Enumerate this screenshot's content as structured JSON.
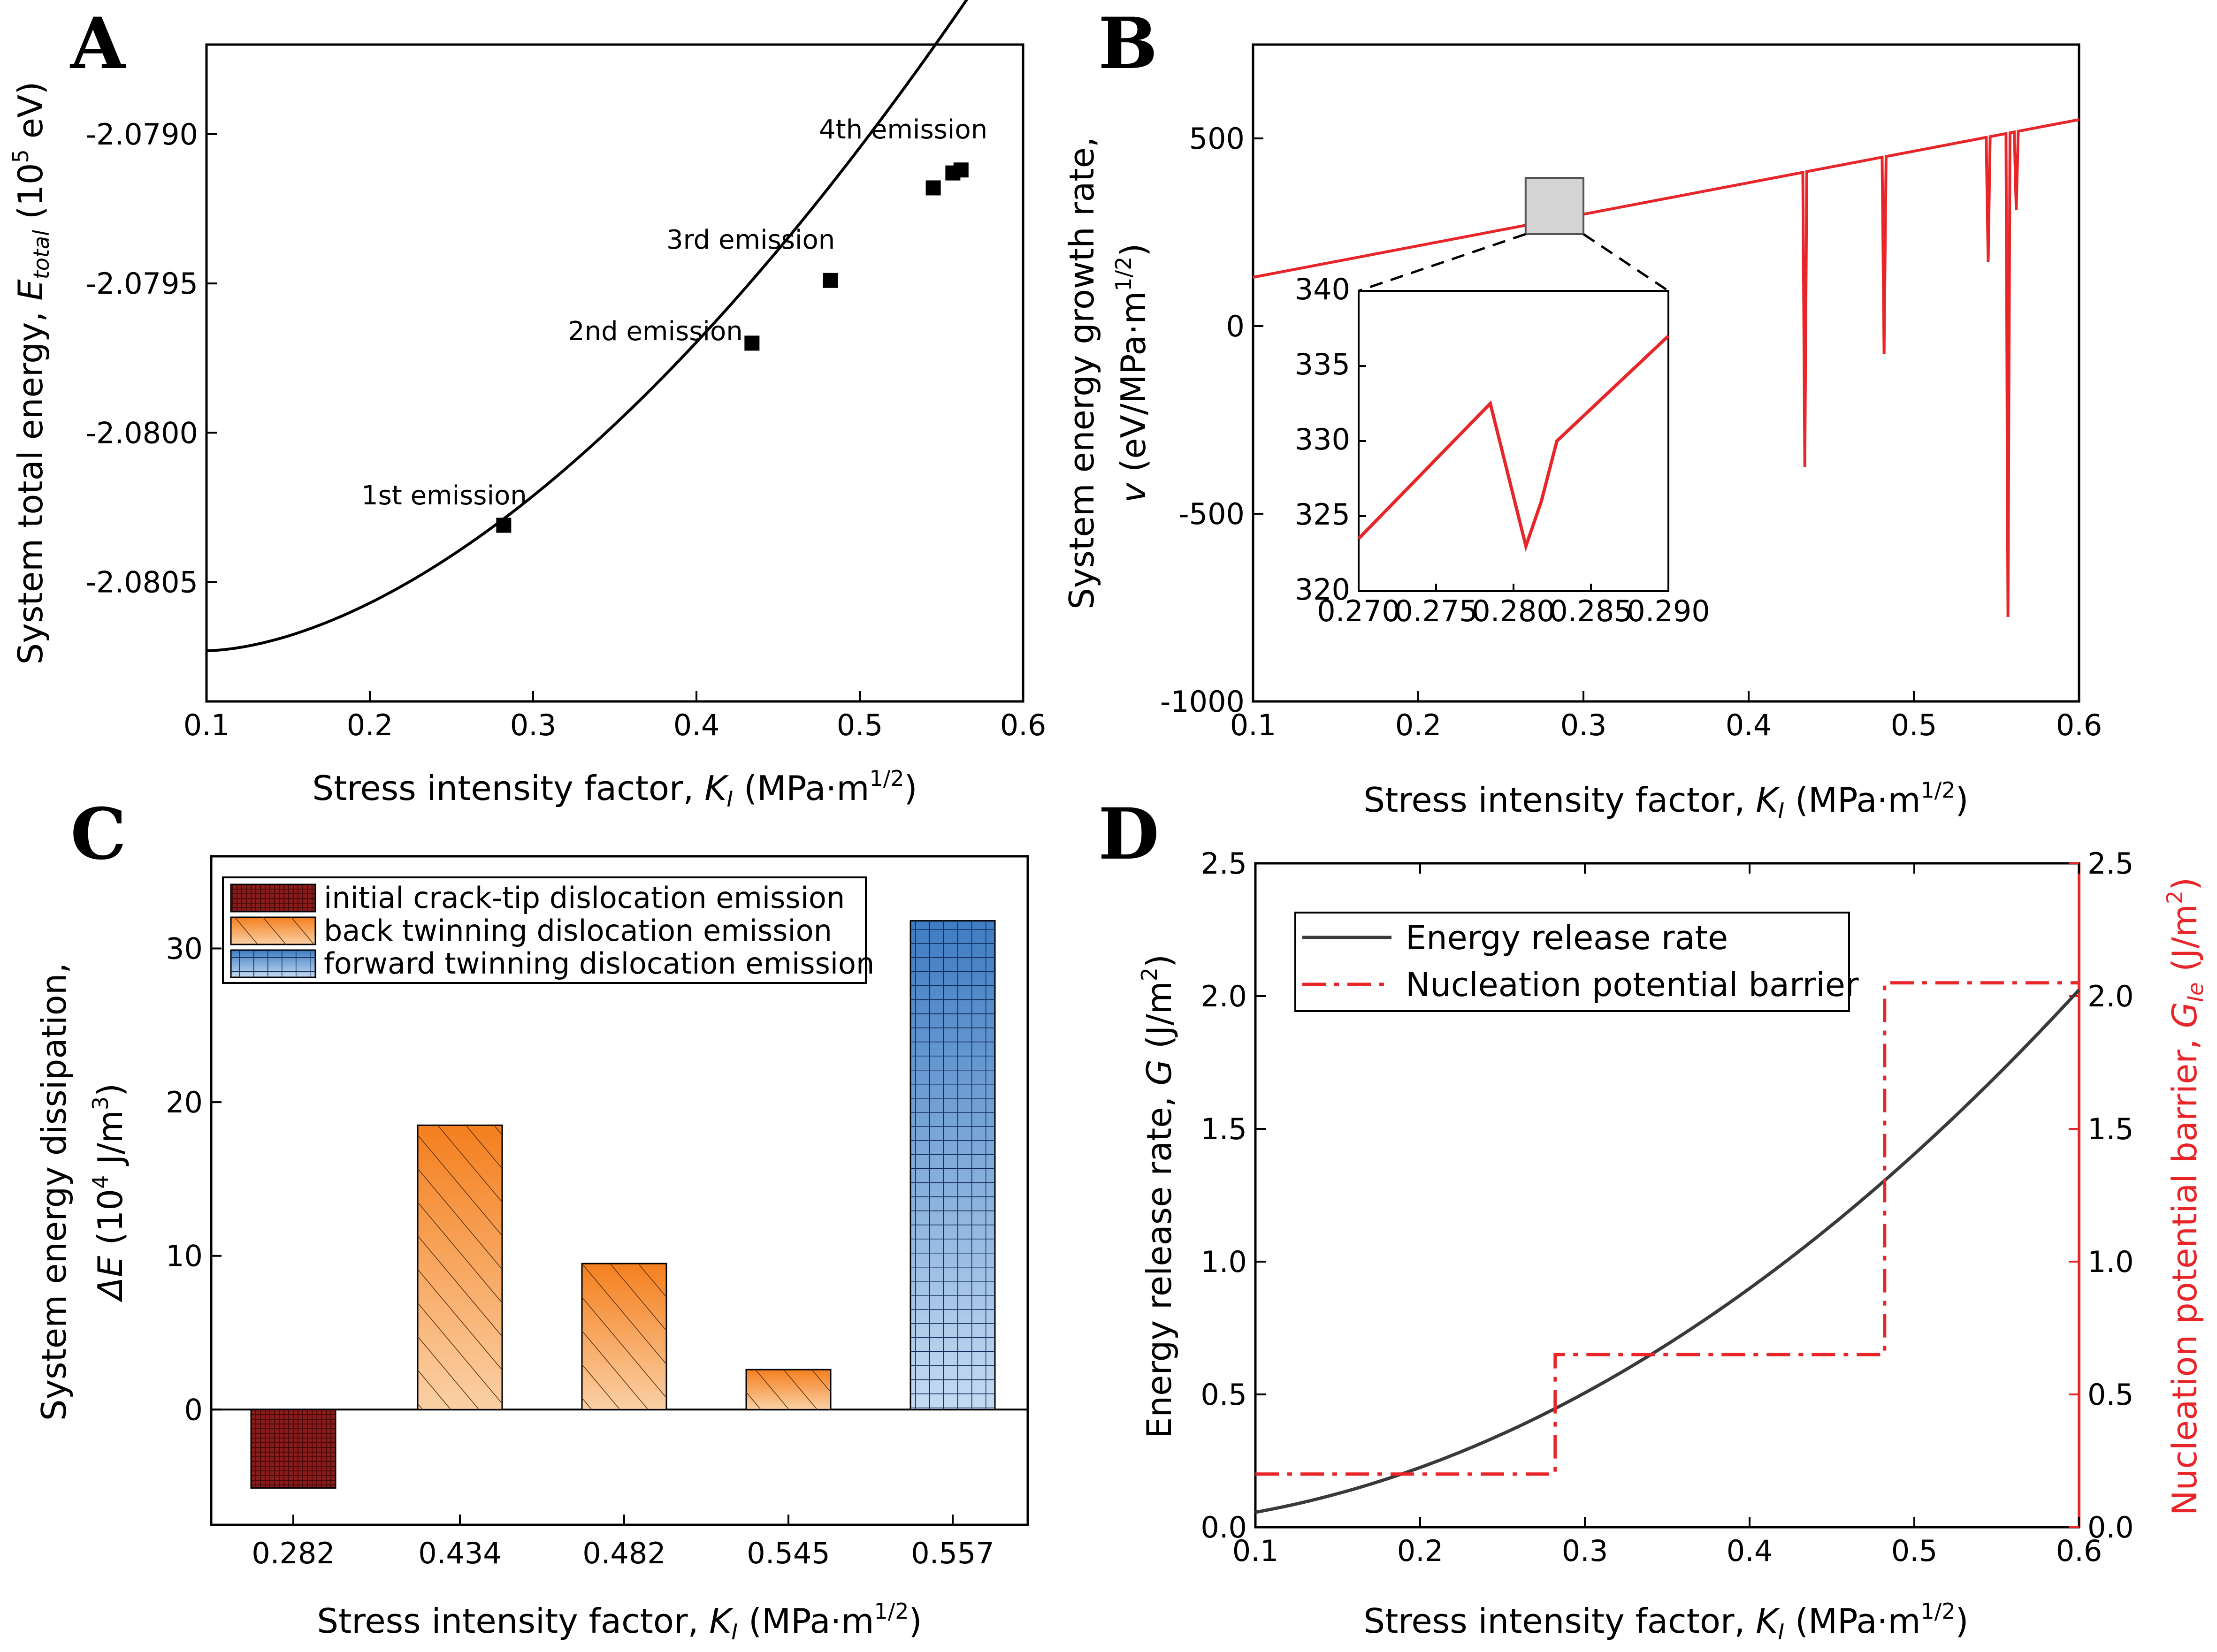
{
  "chart_data": [
    {
      "panel": "A",
      "type": "line",
      "xlabel_main": "Stress intensity factor, ",
      "xlabel_var": "K",
      "xlabel_sub": "I",
      "xlabel_unit": " (MPa·m",
      "xlabel_sup": "1/2",
      "xlabel_end": ")",
      "ylabel_main": "System total energy, ",
      "ylabel_var": "E",
      "ylabel_sub": "total",
      "ylabel_unit": " (10",
      "ylabel_sup": "5",
      "ylabel_end": " eV)",
      "xlim": [
        0.1,
        0.6
      ],
      "ylim": [
        -2.0809,
        -2.0787
      ],
      "xticks": [
        "0.1",
        "0.2",
        "0.3",
        "0.4",
        "0.5",
        "0.6"
      ],
      "yticks": [
        "-2.0805",
        "-2.0800",
        "-2.0795",
        "-2.0790"
      ],
      "curve": {
        "x0": 0.1,
        "y0": -2.08073,
        "k": 0.008,
        "m": 1.7
      },
      "markers": [
        {
          "x": 0.282,
          "y": -2.08031
        },
        {
          "x": 0.434,
          "y": -2.0797
        },
        {
          "x": 0.482,
          "y": -2.07949
        },
        {
          "x": 0.545,
          "y": -2.07918
        },
        {
          "x": 0.557,
          "y": -2.07913
        },
        {
          "x": 0.562,
          "y": -2.07912
        }
      ],
      "annotations": [
        "1st emission",
        "2nd emission",
        "3rd emission",
        "4th emission"
      ]
    },
    {
      "panel": "B",
      "type": "line",
      "color": "#e8262a",
      "xlabel_main": "Stress intensity factor, ",
      "xlabel_var": "K",
      "xlabel_sub": "I",
      "xlabel_unit": " (MPa·m",
      "xlabel_sup": "1/2",
      "xlabel_end": ")",
      "ylabel_line1": "System energy growth rate,",
      "ylabel_var": "v",
      "ylabel_unit": " (eV/MPa·m",
      "ylabel_sup": "1/2",
      "ylabel_end": ")",
      "xlim": [
        0.1,
        0.6
      ],
      "ylim": [
        -1000,
        750
      ],
      "xticks": [
        "0.1",
        "0.2",
        "0.3",
        "0.4",
        "0.5",
        "0.6"
      ],
      "yticks": [
        "-1000",
        "-500",
        "0",
        "500"
      ],
      "baseline": {
        "x0": 0.1,
        "y0": 130,
        "slope": 840
      },
      "spikes": [
        {
          "x": 0.434,
          "min": -375
        },
        {
          "x": 0.482,
          "min": -75
        },
        {
          "x": 0.545,
          "min": 170
        },
        {
          "x": 0.557,
          "min": -775
        },
        {
          "x": 0.562,
          "min": 310
        }
      ],
      "inset": {
        "xlim": [
          0.27,
          0.29
        ],
        "ylim": [
          320,
          340
        ],
        "xticks": [
          "0.270",
          "0.275",
          "0.280",
          "0.285",
          "0.290"
        ],
        "yticks": [
          "320",
          "325",
          "330",
          "335",
          "340"
        ],
        "x": [
          0.27,
          0.2785,
          0.2808,
          0.2818,
          0.2828,
          0.29
        ],
        "y": [
          323.5,
          332.5,
          323.0,
          326.0,
          330.0,
          337.0
        ]
      }
    },
    {
      "panel": "C",
      "type": "bar",
      "categories": [
        "0.282",
        "0.434",
        "0.482",
        "0.545",
        "0.557"
      ],
      "values": [
        -5.1,
        18.5,
        9.5,
        2.6,
        31.8
      ],
      "groups": [
        "initial",
        "back",
        "back",
        "back",
        "forward"
      ],
      "legend": [
        "initial crack-tip dislocation emission",
        "back twinning dislocation emission",
        "forward twinning dislocation emission"
      ],
      "xlabel_main": "Stress intensity factor, ",
      "xlabel_var": "K",
      "xlabel_sub": "I",
      "xlabel_unit": " (MPa·m",
      "xlabel_sup": "1/2",
      "xlabel_end": ")",
      "ylabel_line1": "System energy dissipation,",
      "ylabel_var": "ΔE",
      "ylabel_unit": " (10",
      "ylabel_sup": "4",
      "ylabel_end": " J/m",
      "ylabel_sup2": "3",
      "ylabel_close": ")",
      "ylim": [
        -7.5,
        36
      ],
      "yticks": [
        "0",
        "10",
        "20",
        "30"
      ],
      "colors": {
        "initial": "#7f1d1d",
        "back": "#f59a4a",
        "forward": "#5b8fc8"
      }
    },
    {
      "panel": "D",
      "type": "line",
      "xlabel_main": "Stress intensity factor, ",
      "xlabel_var": "K",
      "xlabel_sub": "I",
      "xlabel_unit": " (MPa·m",
      "xlabel_sup": "1/2",
      "xlabel_end": ")",
      "ylabel_left_main": "Energy release rate, ",
      "ylabel_left_var": "G",
      "ylabel_left_unit": " (J/m",
      "ylabel_left_sup": "2",
      "ylabel_left_end": ")",
      "ylabel_right_main": "Nucleation potential barrier, ",
      "ylabel_right_var": "G",
      "ylabel_right_sub": "Ie",
      "ylabel_right_unit": " (J/m",
      "ylabel_right_sup": "2",
      "ylabel_right_end": ")",
      "xlim": [
        0.1,
        0.6
      ],
      "ylim": [
        0,
        2.5
      ],
      "xticks": [
        "0.1",
        "0.2",
        "0.3",
        "0.4",
        "0.5",
        "0.6"
      ],
      "yticks": [
        "0.0",
        "0.5",
        "1.0",
        "1.5",
        "2.0",
        "2.5"
      ],
      "series": [
        {
          "name": "Energy release rate",
          "color": "#3a3a3a",
          "coef": 5.62,
          "power": 2
        },
        {
          "name": "Nucleation potential barrier",
          "color": "#e8262a",
          "x": [
            0.1,
            0.282,
            0.282,
            0.482,
            0.482,
            0.6
          ],
          "y": [
            0.2,
            0.2,
            0.65,
            0.65,
            2.05,
            2.05
          ]
        }
      ]
    }
  ],
  "panel_letters": [
    "A",
    "B",
    "C",
    "D"
  ]
}
